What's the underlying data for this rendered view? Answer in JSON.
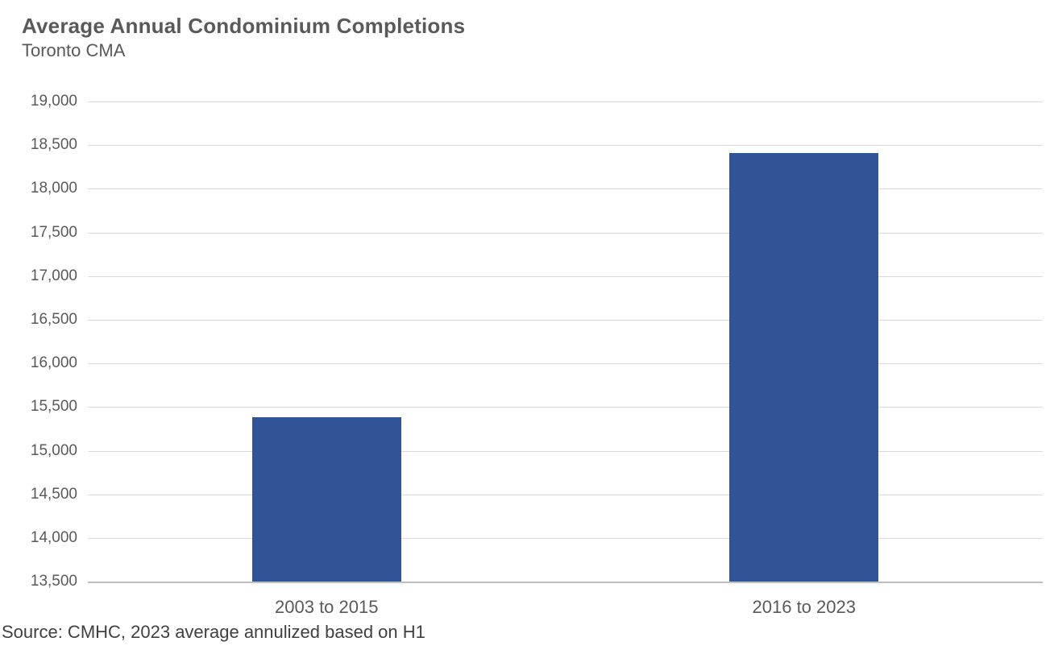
{
  "header": {
    "title": "Average Annual Condominium Completions",
    "subtitle": "Toronto CMA"
  },
  "chart_data": {
    "type": "bar",
    "title": "Average Annual Condominium Completions",
    "subtitle": "Toronto CMA",
    "categories": [
      "2003 to 2015",
      "2016 to 2023"
    ],
    "values": [
      15380,
      18410
    ],
    "xlabel": "",
    "ylabel": "",
    "ylim": [
      13500,
      19000
    ],
    "ytick_step": 500,
    "ytick_labels": [
      "13,500",
      "14,000",
      "14,500",
      "15,000",
      "15,500",
      "16,000",
      "16,500",
      "17,000",
      "17,500",
      "18,000",
      "18,500",
      "19,000"
    ],
    "grid": true,
    "legend": false,
    "colors": {
      "bar": "#2F5597",
      "gridline": "#D9D9D9",
      "axis_line": "#BFBFBF",
      "tick_labels": "#595959",
      "title": "#595959",
      "subtitle": "#595959",
      "source": "#404040"
    }
  },
  "footer": {
    "source": "Source: CMHC, 2023 average annulized based on H1"
  }
}
